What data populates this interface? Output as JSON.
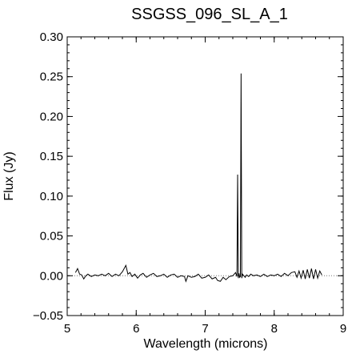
{
  "chart_data": {
    "type": "line",
    "title": "SSGSS_096_SL_A_1",
    "xlabel": "Wavelength (microns)",
    "ylabel": "Flux (Jy)",
    "xlim": [
      5,
      9
    ],
    "ylim": [
      -0.05,
      0.3
    ],
    "xticks": [
      5,
      6,
      7,
      8,
      9
    ],
    "xtick_labels": [
      "5",
      "6",
      "7",
      "8",
      "9"
    ],
    "yticks": [
      -0.05,
      0.0,
      0.05,
      0.1,
      0.15,
      0.2,
      0.25,
      0.3
    ],
    "ytick_labels": [
      "−0.05",
      "0.00",
      "0.05",
      "0.10",
      "0.15",
      "0.20",
      "0.25",
      "0.30"
    ],
    "grid": false,
    "zero_line": {
      "y": 0,
      "style": "dotted"
    },
    "series": [
      {
        "color": "#000000",
        "x": [
          5.12,
          5.15,
          5.18,
          5.21,
          5.24,
          5.27,
          5.3,
          5.35,
          5.4,
          5.45,
          5.5,
          5.55,
          5.6,
          5.65,
          5.7,
          5.75,
          5.8,
          5.85,
          5.88,
          5.91,
          5.94,
          5.98,
          6.02,
          6.06,
          6.1,
          6.15,
          6.2,
          6.25,
          6.3,
          6.35,
          6.4,
          6.45,
          6.5,
          6.55,
          6.6,
          6.65,
          6.7,
          6.72,
          6.75,
          6.8,
          6.85,
          6.9,
          6.95,
          7.0,
          7.05,
          7.1,
          7.15,
          7.18,
          7.22,
          7.26,
          7.3,
          7.35,
          7.4,
          7.44,
          7.46,
          7.47,
          7.48,
          7.49,
          7.5,
          7.51,
          7.52,
          7.53,
          7.54,
          7.56,
          7.58,
          7.6,
          7.63,
          7.66,
          7.7,
          7.75,
          7.8,
          7.85,
          7.9,
          7.95,
          8.0,
          8.05,
          8.1,
          8.15,
          8.2,
          8.25,
          8.3,
          8.33,
          8.36,
          8.39,
          8.42,
          8.45,
          8.48,
          8.51,
          8.54,
          8.57,
          8.6,
          8.63,
          8.66,
          8.69
        ],
        "y": [
          0.004,
          0.009,
          0.002,
          0.001,
          -0.004,
          0.0,
          0.002,
          -0.001,
          0.001,
          0.0,
          0.002,
          0.0,
          0.003,
          -0.001,
          0.002,
          0.0,
          0.005,
          0.013,
          0.002,
          0.004,
          -0.001,
          0.002,
          -0.003,
          0.001,
          0.003,
          -0.002,
          0.001,
          0.003,
          -0.001,
          0.0,
          0.002,
          -0.002,
          0.001,
          0.002,
          -0.002,
          0.0,
          -0.001,
          -0.007,
          0.0,
          -0.002,
          -0.001,
          0.002,
          -0.003,
          -0.002,
          0.001,
          -0.004,
          -0.002,
          -0.006,
          -0.007,
          -0.002,
          -0.005,
          -0.001,
          0.0,
          0.004,
          -0.001,
          0.127,
          -0.003,
          0.003,
          -0.002,
          -0.001,
          0.254,
          -0.003,
          0.002,
          0.0,
          -0.002,
          0.001,
          -0.001,
          0.002,
          0.0,
          0.001,
          -0.001,
          0.002,
          -0.001,
          0.001,
          0.0,
          0.002,
          -0.001,
          0.003,
          0.0,
          0.004,
          0.005,
          -0.002,
          0.006,
          -0.003,
          0.007,
          -0.004,
          0.008,
          -0.003,
          0.009,
          -0.004,
          0.008,
          -0.003,
          0.006,
          0.001
        ]
      }
    ]
  }
}
